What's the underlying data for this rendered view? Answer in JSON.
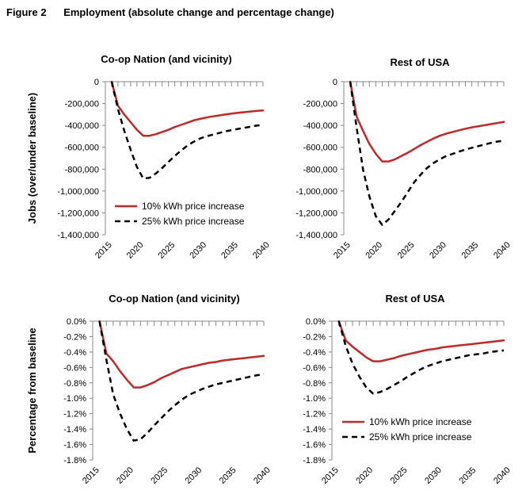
{
  "figure": {
    "number": "Figure 2",
    "title": "Employment (absolute change and percentage change)"
  },
  "colors": {
    "series_10": "#c0282a",
    "series_25": "#000000",
    "axis": "#888888"
  },
  "chart_data": [
    {
      "type": "line",
      "title": "Co-op Nation (and vicinity)",
      "ylabel": "Jobs (over/under baseline)",
      "xlabel": "",
      "xlim": [
        2015,
        2040
      ],
      "ylim": [
        -1400000,
        0
      ],
      "yticks": [
        0,
        -200000,
        -400000,
        -600000,
        -800000,
        -1000000,
        -1200000,
        -1400000
      ],
      "ytick_labels": [
        "0",
        "-200,000",
        "-400,000",
        "-600,000",
        "-800,000",
        "-1,000,000",
        "-1,200,000",
        "-1,400,000"
      ],
      "xticks": [
        2015,
        2020,
        2025,
        2030,
        2035,
        2040
      ],
      "xtick_labels": [
        "2015",
        "2020",
        "2025",
        "2030",
        "2035",
        "2040"
      ],
      "legend": "bottom-left",
      "grid": false,
      "series": [
        {
          "name": "10% kWh price increase",
          "color": "#c0282a",
          "dash": "solid",
          "x": [
            2016,
            2017,
            2018,
            2019,
            2020,
            2021,
            2022,
            2023,
            2024,
            2025,
            2026,
            2027,
            2028,
            2029,
            2030,
            2031,
            2032,
            2033,
            2034,
            2035,
            2036,
            2037,
            2038,
            2039,
            2040
          ],
          "values": [
            0,
            -220000,
            -300000,
            -370000,
            -440000,
            -495000,
            -495000,
            -480000,
            -460000,
            -440000,
            -415000,
            -395000,
            -375000,
            -355000,
            -340000,
            -328000,
            -318000,
            -309000,
            -300000,
            -292000,
            -285000,
            -279000,
            -273000,
            -268000,
            -263000
          ]
        },
        {
          "name": "25% kWh price increase",
          "color": "#000000",
          "dash": "dashed",
          "x": [
            2016,
            2017,
            2018,
            2019,
            2020,
            2021,
            2022,
            2023,
            2024,
            2025,
            2026,
            2027,
            2028,
            2029,
            2030,
            2031,
            2032,
            2033,
            2034,
            2035,
            2036,
            2037,
            2038,
            2039,
            2040
          ],
          "values": [
            0,
            -250000,
            -450000,
            -620000,
            -780000,
            -885000,
            -880000,
            -840000,
            -790000,
            -735000,
            -680000,
            -630000,
            -585000,
            -550000,
            -520000,
            -500000,
            -485000,
            -470000,
            -455000,
            -443000,
            -432000,
            -422000,
            -412000,
            -402000,
            -395000
          ]
        }
      ]
    },
    {
      "type": "line",
      "title": "Rest of USA",
      "ylabel": "",
      "xlabel": "",
      "xlim": [
        2015,
        2040
      ],
      "ylim": [
        -1400000,
        0
      ],
      "yticks": [
        0,
        -200000,
        -400000,
        -600000,
        -800000,
        -1000000,
        -1200000,
        -1400000
      ],
      "ytick_labels": [
        "0",
        "-200,000",
        "-400,000",
        "-600,000",
        "-800,000",
        "-1,000,000",
        "-1,200,000",
        "-1,400,000"
      ],
      "xticks": [
        2015,
        2020,
        2025,
        2030,
        2035,
        2040
      ],
      "xtick_labels": [
        "2015",
        "2020",
        "2025",
        "2030",
        "2035",
        "2040"
      ],
      "legend": "none",
      "grid": false,
      "series": [
        {
          "name": "10% kWh price increase",
          "color": "#c0282a",
          "dash": "solid",
          "x": [
            2016,
            2017,
            2018,
            2019,
            2020,
            2021,
            2022,
            2023,
            2024,
            2025,
            2026,
            2027,
            2028,
            2029,
            2030,
            2031,
            2032,
            2033,
            2034,
            2035,
            2036,
            2037,
            2038,
            2039,
            2040
          ],
          "values": [
            0,
            -320000,
            -450000,
            -570000,
            -660000,
            -730000,
            -730000,
            -710000,
            -680000,
            -650000,
            -615000,
            -580000,
            -550000,
            -520000,
            -495000,
            -475000,
            -460000,
            -445000,
            -430000,
            -418000,
            -408000,
            -398000,
            -388000,
            -378000,
            -368000
          ]
        },
        {
          "name": "25% kWh price increase",
          "color": "#000000",
          "dash": "dashed",
          "x": [
            2016,
            2017,
            2018,
            2019,
            2020,
            2021,
            2022,
            2023,
            2024,
            2025,
            2026,
            2027,
            2028,
            2029,
            2030,
            2031,
            2032,
            2033,
            2034,
            2035,
            2036,
            2037,
            2038,
            2039,
            2040
          ],
          "values": [
            0,
            -420000,
            -800000,
            -1050000,
            -1230000,
            -1310000,
            -1260000,
            -1180000,
            -1100000,
            -1010000,
            -920000,
            -850000,
            -790000,
            -745000,
            -710000,
            -680000,
            -660000,
            -640000,
            -620000,
            -605000,
            -590000,
            -575000,
            -560000,
            -548000,
            -540000
          ]
        }
      ]
    },
    {
      "type": "line",
      "title": "Co-op Nation (and vicinity)",
      "ylabel": "Percentage from baseline",
      "xlabel": "",
      "xlim": [
        2015,
        2040
      ],
      "ylim": [
        -1.8,
        0.0
      ],
      "yticks": [
        0.0,
        -0.2,
        -0.4,
        -0.6,
        -0.8,
        -1.0,
        -1.2,
        -1.4,
        -1.6,
        -1.8
      ],
      "ytick_labels": [
        "0.0%",
        "-0.2%",
        "-0.4%",
        "-0.6%",
        "-0.8%",
        "-1.0%",
        "-1.2%",
        "-1.4%",
        "-1.6%",
        "-1.8%"
      ],
      "xticks": [
        2015,
        2020,
        2025,
        2030,
        2035,
        2040
      ],
      "xtick_labels": [
        "2015",
        "2020",
        "2025",
        "2030",
        "2035",
        "2040"
      ],
      "legend": "none",
      "grid": false,
      "series": [
        {
          "name": "10% kWh price increase",
          "color": "#c0282a",
          "dash": "solid",
          "x": [
            2016,
            2017,
            2018,
            2019,
            2020,
            2021,
            2022,
            2023,
            2024,
            2025,
            2026,
            2027,
            2028,
            2029,
            2030,
            2031,
            2032,
            2033,
            2034,
            2035,
            2036,
            2037,
            2038,
            2039,
            2040
          ],
          "values": [
            0,
            -0.42,
            -0.52,
            -0.65,
            -0.76,
            -0.86,
            -0.86,
            -0.83,
            -0.79,
            -0.74,
            -0.7,
            -0.66,
            -0.62,
            -0.6,
            -0.58,
            -0.56,
            -0.54,
            -0.53,
            -0.51,
            -0.5,
            -0.49,
            -0.48,
            -0.47,
            -0.46,
            -0.45
          ]
        },
        {
          "name": "25% kWh price increase",
          "color": "#000000",
          "dash": "dashed",
          "x": [
            2016,
            2017,
            2018,
            2019,
            2020,
            2021,
            2022,
            2023,
            2024,
            2025,
            2026,
            2027,
            2028,
            2029,
            2030,
            2031,
            2032,
            2033,
            2034,
            2035,
            2036,
            2037,
            2038,
            2039,
            2040
          ],
          "values": [
            0,
            -0.5,
            -0.95,
            -1.2,
            -1.4,
            -1.55,
            -1.53,
            -1.45,
            -1.35,
            -1.26,
            -1.17,
            -1.09,
            -1.02,
            -0.96,
            -0.92,
            -0.88,
            -0.85,
            -0.82,
            -0.8,
            -0.78,
            -0.76,
            -0.74,
            -0.72,
            -0.7,
            -0.69
          ]
        }
      ]
    },
    {
      "type": "line",
      "title": "Rest of USA",
      "ylabel": "",
      "xlabel": "",
      "xlim": [
        2015,
        2040
      ],
      "ylim": [
        -1.8,
        0.0
      ],
      "yticks": [
        0.0,
        -0.2,
        -0.4,
        -0.6,
        -0.8,
        -1.0,
        -1.2,
        -1.4,
        -1.6,
        -1.8
      ],
      "ytick_labels": [
        "0.0%",
        "-0.2%",
        "-0.4%",
        "-0.6%",
        "-0.8%",
        "-1.0%",
        "-1.2%",
        "-1.4%",
        "-1.6%",
        "-1.8%"
      ],
      "xticks": [
        2015,
        2020,
        2025,
        2030,
        2035,
        2040
      ],
      "xtick_labels": [
        "2015",
        "2020",
        "2025",
        "2030",
        "2035",
        "2040"
      ],
      "legend": "bottom-left",
      "grid": false,
      "series": [
        {
          "name": "10% kWh price increase",
          "color": "#c0282a",
          "dash": "solid",
          "x": [
            2016,
            2017,
            2018,
            2019,
            2020,
            2021,
            2022,
            2023,
            2024,
            2025,
            2026,
            2027,
            2028,
            2029,
            2030,
            2031,
            2032,
            2033,
            2034,
            2035,
            2036,
            2037,
            2038,
            2039,
            2040
          ],
          "values": [
            0,
            -0.25,
            -0.33,
            -0.4,
            -0.47,
            -0.52,
            -0.52,
            -0.5,
            -0.48,
            -0.45,
            -0.43,
            -0.41,
            -0.39,
            -0.37,
            -0.36,
            -0.34,
            -0.33,
            -0.32,
            -0.31,
            -0.3,
            -0.29,
            -0.28,
            -0.27,
            -0.26,
            -0.25
          ]
        },
        {
          "name": "25% kWh price increase",
          "color": "#000000",
          "dash": "dashed",
          "x": [
            2016,
            2017,
            2018,
            2019,
            2020,
            2021,
            2022,
            2023,
            2024,
            2025,
            2026,
            2027,
            2028,
            2029,
            2030,
            2031,
            2032,
            2033,
            2034,
            2035,
            2036,
            2037,
            2038,
            2039,
            2040
          ],
          "values": [
            0,
            -0.32,
            -0.55,
            -0.72,
            -0.86,
            -0.94,
            -0.92,
            -0.88,
            -0.83,
            -0.78,
            -0.72,
            -0.67,
            -0.62,
            -0.58,
            -0.55,
            -0.52,
            -0.5,
            -0.48,
            -0.46,
            -0.44,
            -0.43,
            -0.42,
            -0.4,
            -0.39,
            -0.38
          ]
        }
      ]
    }
  ]
}
